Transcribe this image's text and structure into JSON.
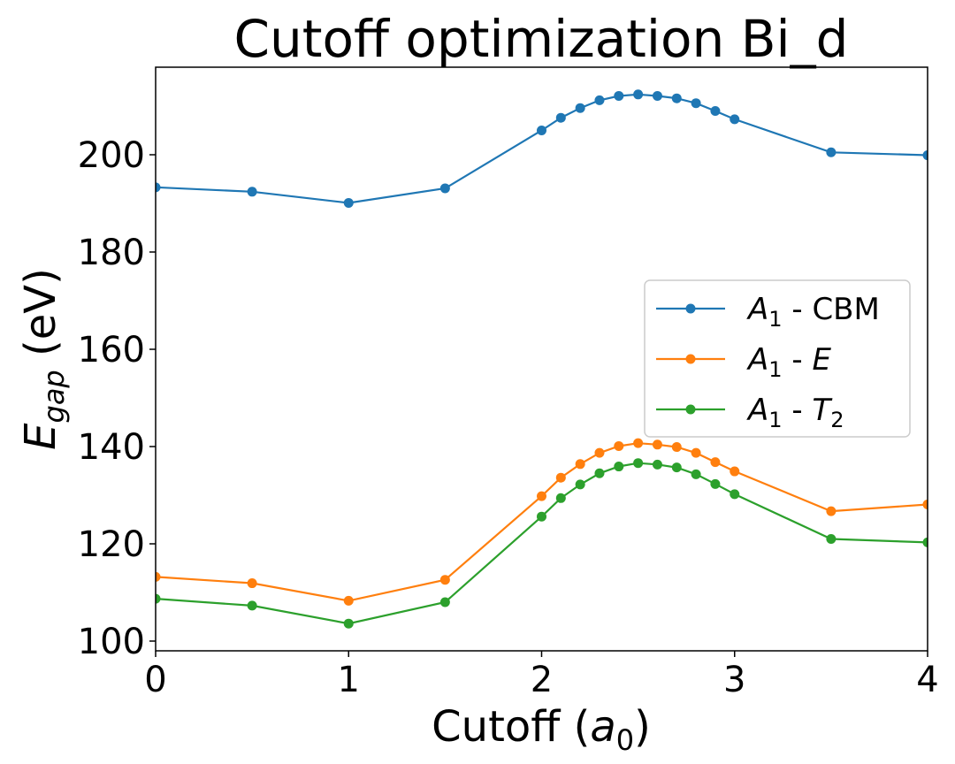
{
  "chart_data": {
    "type": "line",
    "title": "Cutoff optimization Bi_d",
    "xlabel": {
      "prefix": "Cutoff (",
      "var": "a",
      "sub": "0",
      "suffix": ")"
    },
    "ylabel": {
      "var": "E",
      "sub": "gap",
      "suffix": " (eV)"
    },
    "xlim": [
      0,
      4
    ],
    "ylim": [
      98,
      218
    ],
    "xticks": [
      0,
      1,
      2,
      3,
      4
    ],
    "yticks": [
      100,
      120,
      140,
      160,
      180,
      200
    ],
    "grid": false,
    "legend_position": "center-right",
    "x": [
      0,
      0.5,
      1.0,
      1.5,
      2.0,
      2.1,
      2.2,
      2.3,
      2.4,
      2.5,
      2.6,
      2.7,
      2.8,
      2.9,
      3.0,
      3.5,
      4.0
    ],
    "series": [
      {
        "name": "A1 - CBM",
        "legend": {
          "var": "A",
          "sub": "1",
          "sep": " - ",
          "rest": "CBM",
          "rest_italic": false
        },
        "color": "#1f77b4",
        "values": [
          193.3,
          192.4,
          190.1,
          193.1,
          205.0,
          207.6,
          209.6,
          211.2,
          212.1,
          212.4,
          212.1,
          211.6,
          210.6,
          209.0,
          207.3,
          200.5,
          199.9
        ]
      },
      {
        "name": "A1 - E",
        "legend": {
          "var": "A",
          "sub": "1",
          "sep": " - ",
          "rest": "E",
          "rest_italic": true
        },
        "color": "#ff7f0e",
        "values": [
          113.2,
          111.9,
          108.3,
          112.6,
          129.8,
          133.6,
          136.4,
          138.7,
          140.1,
          140.7,
          140.4,
          139.9,
          138.7,
          136.8,
          134.9,
          126.7,
          128.1
        ]
      },
      {
        "name": "A1 - T2",
        "legend": {
          "var": "A",
          "sub": "1",
          "sep": " - ",
          "rest": "T",
          "rest_italic": true,
          "rest_sub": "2"
        },
        "color": "#2ca02c",
        "values": [
          108.7,
          107.3,
          103.6,
          108.0,
          125.6,
          129.4,
          132.2,
          134.5,
          135.9,
          136.6,
          136.3,
          135.7,
          134.3,
          132.3,
          130.2,
          121.0,
          120.3
        ]
      }
    ]
  }
}
